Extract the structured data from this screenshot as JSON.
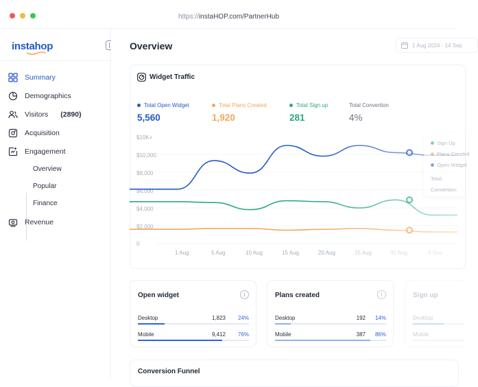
{
  "browser": {
    "url_prefix": "https://",
    "url_host": "instaHOP.com/PartnerHub",
    "dots": [
      "#f25a55",
      "#f6b73c",
      "#3ec552"
    ]
  },
  "sidebar": {
    "logo": "instahop",
    "nav": [
      {
        "label": "Summary",
        "icon": "grid-icon",
        "active": true
      },
      {
        "label": "Demographics",
        "icon": "pie-chart-icon"
      },
      {
        "label": "Visitors",
        "count": "(2890)",
        "icon": "users-icon"
      },
      {
        "label": "Acquisition",
        "icon": "target-icon"
      },
      {
        "label": "Engagement",
        "icon": "engagement-icon"
      },
      {
        "label": "Revenue",
        "icon": "revenue-icon"
      }
    ],
    "engagement_sub": [
      "Overview",
      "Popular",
      "Finance"
    ]
  },
  "main": {
    "title": "Overview",
    "date_range": "1 Aug 2024 - 14 Sep"
  },
  "traffic": {
    "title": "Widget Traffic",
    "stats": [
      {
        "label": "Total Open Widget",
        "value": "5,560",
        "color": "#2358c9"
      },
      {
        "label": "Total Plans Created",
        "value": "1,920",
        "color": "#f5a75a"
      },
      {
        "label": "Total Sign up",
        "value": "281",
        "color": "#2aab7a"
      },
      {
        "label": "Total Convertion",
        "value": "4%",
        "color": "#6b7482"
      }
    ],
    "legend_tip": {
      "sign_up": "Sign Up",
      "plans": "Plans Created",
      "open": "Open Widget",
      "total": "Total:",
      "conversion": "Convertion:"
    }
  },
  "chart_data": {
    "type": "line",
    "x": [
      "1 Aug",
      "5 Aug",
      "10 Aug",
      "15 Aug",
      "20 Aug",
      "25 Aug",
      "30 Aug",
      "4 Sep"
    ],
    "y_ticks": [
      "$10K+",
      "$10,000",
      "$8,000",
      "$6,000",
      "$4,000",
      "$2,000",
      "0"
    ],
    "series": [
      {
        "name": "Open Widget",
        "color": "#2358c9",
        "values": [
          6100,
          9300,
          7900,
          11000,
          9800,
          11000,
          10200,
          9900
        ]
      },
      {
        "name": "Sign Up",
        "color": "#2aab7a",
        "values": [
          4700,
          4600,
          3800,
          4800,
          4700,
          4000,
          4900,
          3200
        ]
      },
      {
        "name": "Plans Created",
        "color": "#f5a75a",
        "values": [
          1600,
          1700,
          1700,
          1500,
          1600,
          1700,
          1500,
          1300
        ]
      }
    ]
  },
  "mini_cards": [
    {
      "title": "Open widget",
      "rows": [
        {
          "label": "Desktop",
          "value": "1,823",
          "pct": "24%",
          "fill": 0.24
        },
        {
          "label": "Mobile",
          "value": "9,412",
          "pct": "76%",
          "fill": 0.76
        }
      ]
    },
    {
      "title": "Plans created",
      "rows": [
        {
          "label": "Desktop",
          "value": "192",
          "pct": "14%",
          "fill": 0.14
        },
        {
          "label": "Mobile",
          "value": "387",
          "pct": "86%",
          "fill": 0.86
        }
      ]
    },
    {
      "title": "Sign up",
      "rows": [
        {
          "label": "Desktop"
        },
        {
          "label": "Mobile"
        }
      ]
    }
  ],
  "funnel": {
    "title": "Conversion Funnel"
  }
}
